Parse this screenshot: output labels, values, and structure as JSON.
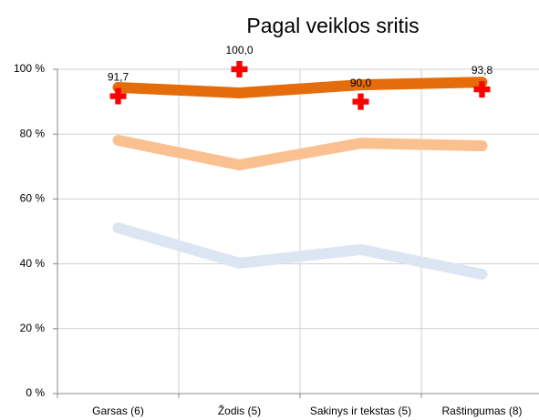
{
  "chart_data": {
    "type": "line",
    "title": "Pagal veiklos sritis",
    "categories": [
      "Garsas (6)",
      "Žodis (5)",
      "Sakinys ir tekstas (5)",
      "Raštingumas (8)"
    ],
    "series": [
      {
        "color": "#dce6f2",
        "mode": "lines",
        "values": [
          51.1,
          40.2,
          44.4,
          36.8
        ]
      },
      {
        "color": "#fac090",
        "mode": "lines",
        "values": [
          78.1,
          70.5,
          77.2,
          76.4
        ]
      },
      {
        "color": "#e46c0a",
        "mode": "lines",
        "values": [
          94.4,
          92.7,
          95.2,
          96.0
        ]
      },
      {
        "color": "#ff0000",
        "mode": "markers",
        "values": [
          91.7,
          100.0,
          90.0,
          93.8
        ],
        "value_labels": [
          "91,7",
          "100,0",
          "90,0",
          "93,8"
        ]
      }
    ],
    "ylim": [
      0,
      100
    ],
    "yticks": [
      {
        "value": 0,
        "label": "0 %"
      },
      {
        "value": 20,
        "label": "20 %"
      },
      {
        "value": 40,
        "label": "40 %"
      },
      {
        "value": 60,
        "label": "60 %"
      },
      {
        "value": 80,
        "label": "80 %"
      },
      {
        "value": 100,
        "label": "100 %"
      }
    ],
    "grid": true
  }
}
